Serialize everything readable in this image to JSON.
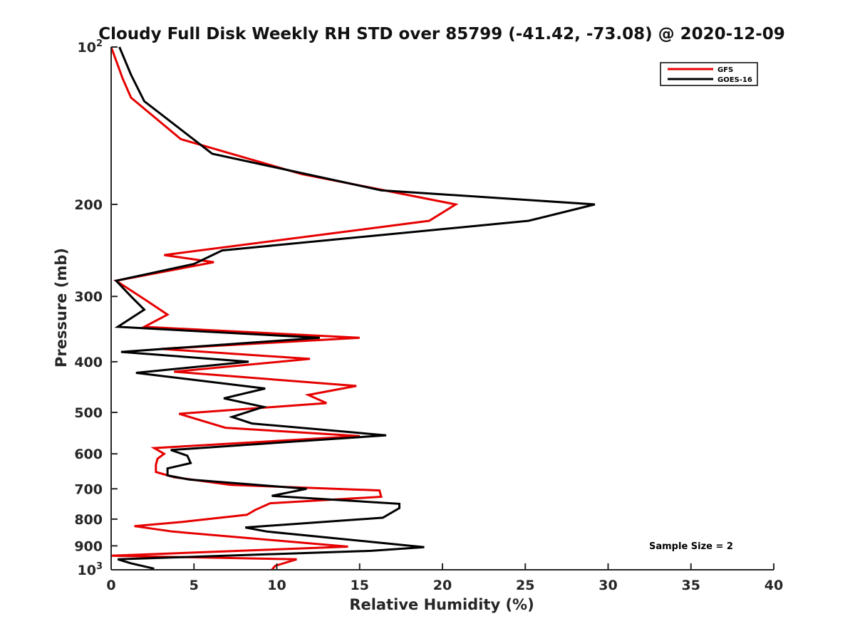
{
  "chart_data": {
    "type": "line",
    "title": "Cloudy Full Disk Weekly RH STD over 85799 (-41.42, -73.08) @ 2020-12-09",
    "xlabel": "Relative Humidity (%)",
    "ylabel": "Pressure (mb)",
    "xlim": [
      0,
      40
    ],
    "ylim": [
      100,
      1000
    ],
    "y_scale": "log",
    "y_reversed": true,
    "grid": false,
    "legend_position": "top-right",
    "x_ticks": [
      "0",
      "5",
      "10",
      "15",
      "20",
      "25",
      "30",
      "35",
      "40"
    ],
    "y_ticks": [
      {
        "value": 100,
        "base": "10",
        "exp": "2"
      },
      {
        "value": 200,
        "label": "200"
      },
      {
        "value": 300,
        "label": "300"
      },
      {
        "value": 400,
        "label": "400"
      },
      {
        "value": 500,
        "label": "500"
      },
      {
        "value": 600,
        "label": "600"
      },
      {
        "value": 700,
        "label": "700"
      },
      {
        "value": 800,
        "label": "800"
      },
      {
        "value": 900,
        "label": "900"
      },
      {
        "value": 1000,
        "base": "10",
        "exp": "3"
      }
    ],
    "annotation": "Sample Size = 2",
    "series": [
      {
        "name": "GFS",
        "color": "#e60000",
        "points": [
          [
            0.0,
            100
          ],
          [
            0.7,
            115
          ],
          [
            1.2,
            125
          ],
          [
            4.2,
            150
          ],
          [
            11.5,
            175
          ],
          [
            20.8,
            200
          ],
          [
            19.2,
            215
          ],
          [
            3.2,
            250
          ],
          [
            6.2,
            258
          ],
          [
            0.3,
            280
          ],
          [
            2.1,
            305
          ],
          [
            3.4,
            325
          ],
          [
            2.0,
            343
          ],
          [
            15.0,
            360
          ],
          [
            3.0,
            378
          ],
          [
            12.0,
            395
          ],
          [
            3.8,
            418
          ],
          [
            14.8,
            445
          ],
          [
            11.9,
            463
          ],
          [
            13.0,
            480
          ],
          [
            4.1,
            503
          ],
          [
            6.9,
            535
          ],
          [
            15.0,
            555
          ],
          [
            2.6,
            585
          ],
          [
            3.2,
            600
          ],
          [
            2.8,
            613
          ],
          [
            2.7,
            630
          ],
          [
            2.7,
            650
          ],
          [
            3.8,
            665
          ],
          [
            7.2,
            688
          ],
          [
            16.2,
            705
          ],
          [
            16.3,
            725
          ],
          [
            9.6,
            746
          ],
          [
            8.7,
            768
          ],
          [
            8.2,
            785
          ],
          [
            4.3,
            810
          ],
          [
            1.4,
            825
          ],
          [
            3.7,
            845
          ],
          [
            14.3,
            903
          ],
          [
            0.0,
            940
          ],
          [
            11.2,
            955
          ],
          [
            9.9,
            983
          ],
          [
            9.7,
            1000
          ]
        ]
      },
      {
        "name": "GOES-16",
        "color": "#000000",
        "points": [
          [
            0.5,
            100
          ],
          [
            1.2,
            113
          ],
          [
            2.0,
            127
          ],
          [
            6.1,
            160
          ],
          [
            16.3,
            188
          ],
          [
            29.2,
            200
          ],
          [
            25.2,
            215
          ],
          [
            6.7,
            245
          ],
          [
            5.0,
            260
          ],
          [
            0.3,
            280
          ],
          [
            1.2,
            300
          ],
          [
            2.0,
            318
          ],
          [
            0.4,
            343
          ],
          [
            12.6,
            360
          ],
          [
            0.6,
            383
          ],
          [
            8.3,
            400
          ],
          [
            1.5,
            420
          ],
          [
            9.3,
            450
          ],
          [
            6.8,
            470
          ],
          [
            9.2,
            488
          ],
          [
            7.3,
            510
          ],
          [
            8.5,
            525
          ],
          [
            16.6,
            553
          ],
          [
            3.6,
            590
          ],
          [
            4.6,
            605
          ],
          [
            4.8,
            625
          ],
          [
            3.4,
            640
          ],
          [
            3.4,
            660
          ],
          [
            4.7,
            672
          ],
          [
            11.8,
            700
          ],
          [
            9.7,
            722
          ],
          [
            17.4,
            748
          ],
          [
            17.4,
            762
          ],
          [
            16.4,
            795
          ],
          [
            8.1,
            830
          ],
          [
            9.4,
            845
          ],
          [
            18.9,
            905
          ],
          [
            15.7,
            920
          ],
          [
            0.4,
            955
          ],
          [
            1.2,
            972
          ],
          [
            2.6,
            995
          ]
        ]
      }
    ]
  }
}
